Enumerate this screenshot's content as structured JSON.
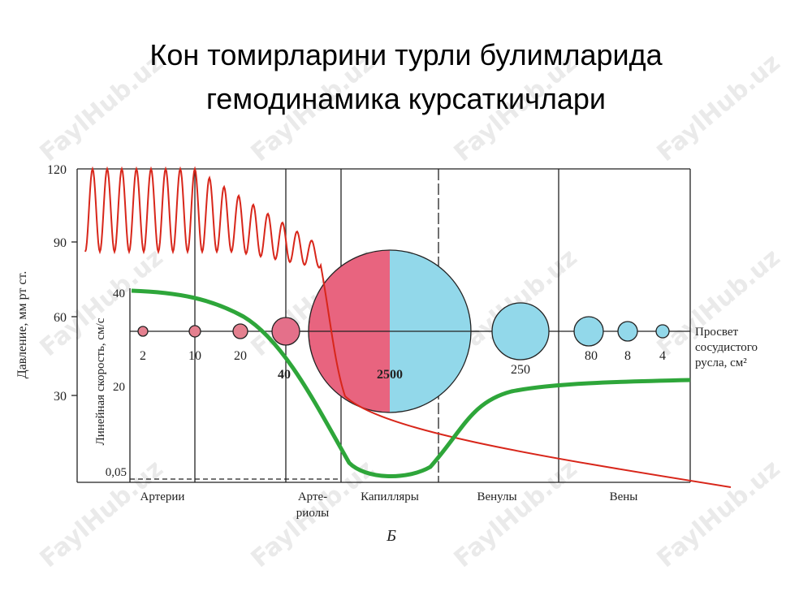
{
  "title": {
    "lines": [
      "Кон томирларини турли булимларида",
      "гемодинамика курсаткичлари"
    ]
  },
  "diagram": {
    "pressure_axis": {
      "label": "Давление, мм рт ст.",
      "ticks": [
        "120",
        "90",
        "60",
        "30"
      ]
    },
    "velocity_axis": {
      "label": "Линейная скорость, см/с",
      "ticks": [
        "40",
        "20",
        "0,05"
      ]
    },
    "lumen_label": {
      "lines": [
        "Просвет",
        "сосудистого",
        "русла, см²"
      ]
    },
    "circle_labels": [
      "2",
      "10",
      "20",
      "40",
      "2500",
      "250",
      "80",
      "8",
      "4"
    ],
    "sections": [
      {
        "lines": [
          "Артерии"
        ]
      },
      {
        "lines": [
          "Арте-",
          "риолы"
        ]
      },
      {
        "lines": [
          "Капилляры"
        ]
      },
      {
        "lines": [
          "Венулы"
        ]
      },
      {
        "lines": [
          "Вены"
        ]
      }
    ],
    "caption": "Б"
  },
  "watermark": "FaylHub.uz"
}
